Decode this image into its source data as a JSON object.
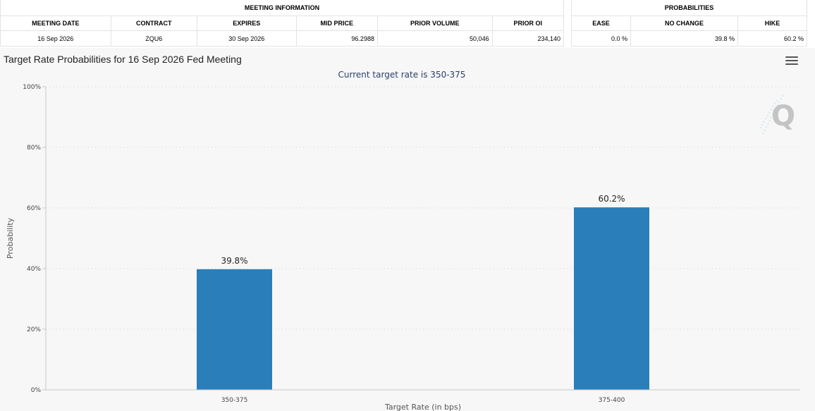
{
  "meeting_info": {
    "group_title": "MEETING INFORMATION",
    "headers": [
      "MEETING DATE",
      "CONTRACT",
      "EXPIRES",
      "MID PRICE",
      "PRIOR VOLUME",
      "PRIOR OI"
    ],
    "row": [
      "16 Sep 2026",
      "ZQU6",
      "30 Sep 2026",
      "96.2988",
      "50,046",
      "234,140"
    ]
  },
  "probabilities": {
    "group_title": "PROBABILITIES",
    "headers": [
      "EASE",
      "NO CHANGE",
      "HIKE"
    ],
    "row": [
      "0.0 %",
      "39.8 %",
      "60.2 %"
    ]
  },
  "chart_data": {
    "type": "bar",
    "title": "Target Rate Probabilities for 16 Sep 2026 Fed Meeting",
    "subtitle": "Current target rate is 350-375",
    "categories": [
      "350-375",
      "375-400"
    ],
    "values": [
      39.8,
      60.2
    ],
    "data_labels": [
      "39.8%",
      "60.2%"
    ],
    "xlabel": "Target Rate (in bps)",
    "ylabel": "Probability",
    "ylim": [
      0,
      100
    ],
    "yticks": [
      "0%",
      "20%",
      "40%",
      "60%",
      "80%",
      "100%"
    ],
    "grid": true,
    "bar_color": "#2a7fba"
  },
  "icons": {
    "menu": "hamburger-menu-icon",
    "logo": "q-logo-icon"
  }
}
